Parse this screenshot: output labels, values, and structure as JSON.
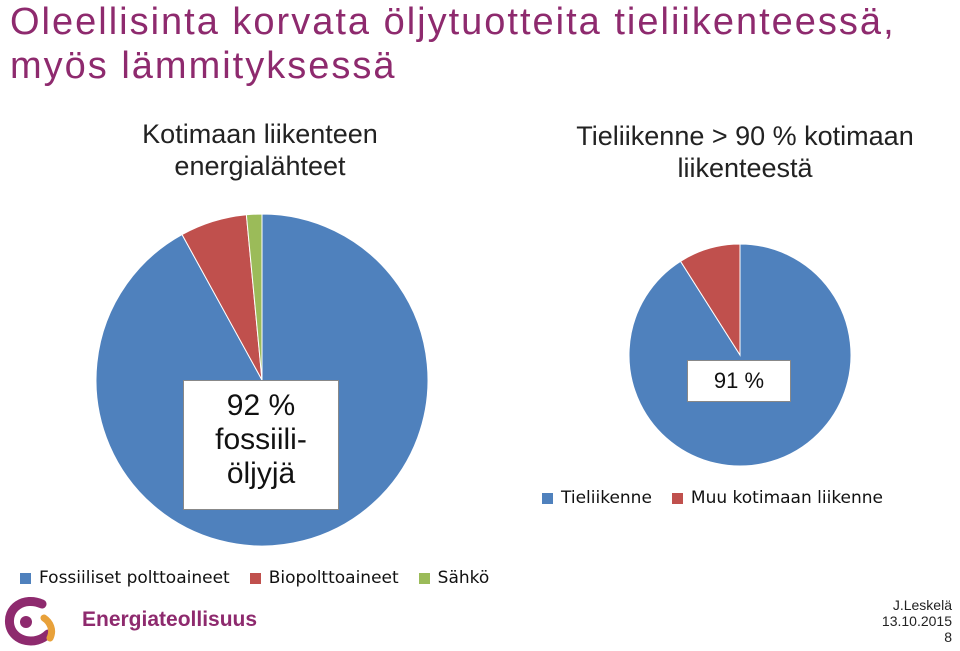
{
  "slide": {
    "title": "Oleellisinta korvata öljytuotteita tieliikenteessä, myös lämmityksessä"
  },
  "colors": {
    "blue": "#4f81bd",
    "red": "#c0504d",
    "green": "#9bbb59",
    "title": "#8e2a6e"
  },
  "chart_data": [
    {
      "type": "pie",
      "title": "Kotimaan liikenteen energialähteet",
      "annotation": "92 % fossiili-öljyjä",
      "annotation_lines": [
        "92 %",
        "fossiili-",
        "öljyjä"
      ],
      "categories": [
        "Fossiiliset polttoaineet",
        "Biopolttoaineet",
        "Sähkö"
      ],
      "values": [
        92,
        6.5,
        1.5
      ],
      "legend": "bottom"
    },
    {
      "type": "pie",
      "title": "Tieliikenne > 90 % kotimaan liikenteestä",
      "annotation": "91 %",
      "categories": [
        "Tieliikenne",
        "Muu kotimaan liikenne"
      ],
      "values": [
        91,
        9
      ],
      "legend": "bottom"
    }
  ],
  "logo": {
    "name": "Energiateollisuus"
  },
  "footer": {
    "author": "J.Leskelä",
    "date": "13.10.2015",
    "page": "8"
  }
}
